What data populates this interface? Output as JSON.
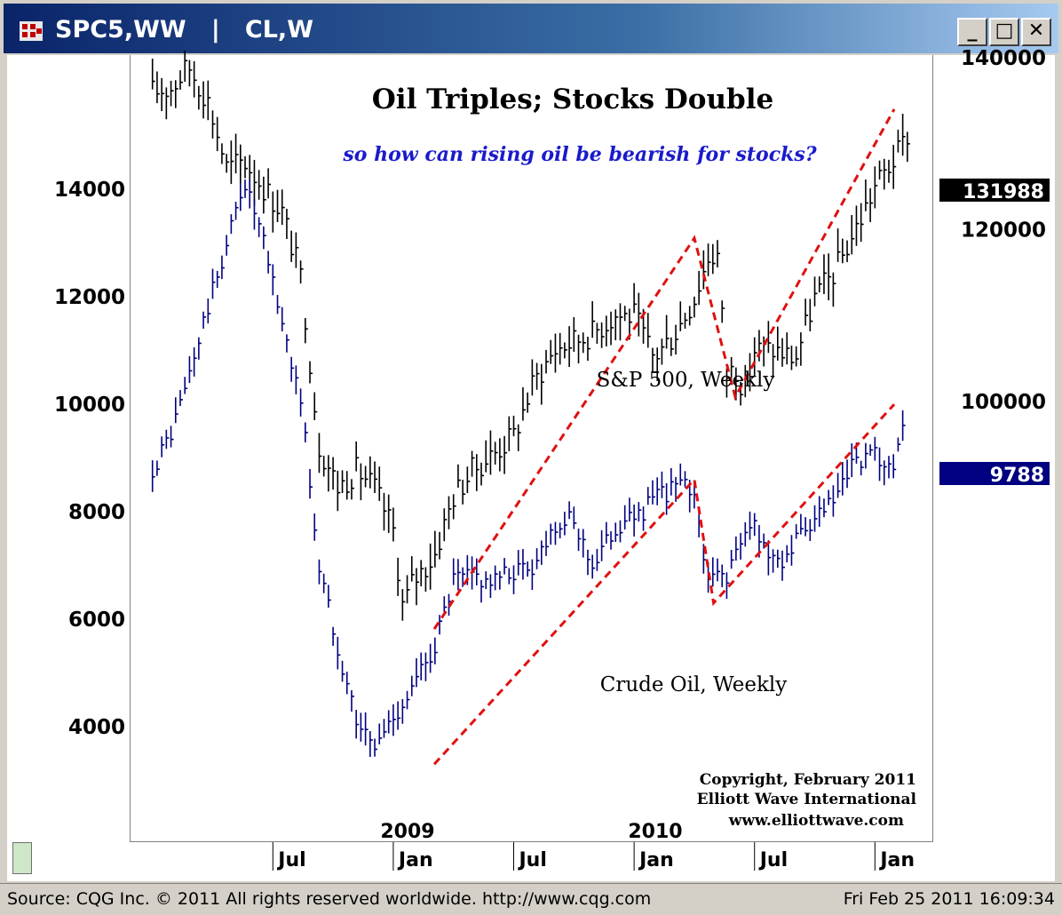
{
  "window": {
    "title": "SPC5,WW   |   CL,W",
    "buttons": {
      "minimize": "_",
      "maximize": "□",
      "close": "✕"
    }
  },
  "status_bar": {
    "source": "Source: CQG Inc. © 2011 All rights reserved worldwide. http://www.cqg.com",
    "datetime": "Fri Feb 25 2011 16:09:34"
  },
  "chart_data": {
    "type": "line",
    "title": "Oil Triples; Stocks Double",
    "subtitle": "so how can rising oil be bearish for stocks?",
    "copyright": [
      "Copyright, February 2011",
      "Elliott Wave International",
      "www.elliottwave.com"
    ],
    "x_ticks": [
      "Jul",
      "Jan",
      "Jul",
      "Jan",
      "Jul",
      "Jan"
    ],
    "year_labels": [
      "2009",
      "2010"
    ],
    "left_axis": {
      "ticks": [
        4000,
        6000,
        8000,
        10000,
        12000,
        14000
      ],
      "ylim": [
        1850,
        16500
      ]
    },
    "right_axis": {
      "ticks": [
        100000,
        120000,
        140000
      ],
      "ylim": [
        48700,
        140300
      ]
    },
    "series": [
      {
        "name": "S&P 500, Weekly",
        "axis": "right",
        "color": "#000000",
        "last_value": "131988",
        "x": [
          2008.0,
          2008.08,
          2008.15,
          2008.23,
          2008.31,
          2008.38,
          2008.46,
          2008.54,
          2008.62,
          2008.69,
          2008.77,
          2008.85,
          2008.92,
          2009.0,
          2009.04,
          2009.08,
          2009.17,
          2009.25,
          2009.33,
          2009.42,
          2009.5,
          2009.58,
          2009.67,
          2009.75,
          2009.83,
          2009.92,
          2010.0,
          2010.08,
          2010.17,
          2010.25,
          2010.31,
          2010.35,
          2010.38,
          2010.42,
          2010.46,
          2010.5,
          2010.58,
          2010.67,
          2010.75,
          2010.83,
          2010.92,
          2011.0,
          2011.1,
          2011.15
        ],
        "values": [
          136000,
          136500,
          139000,
          135000,
          127000,
          128000,
          125000,
          122000,
          114000,
          95000,
          90000,
          92000,
          90000,
          85000,
          76000,
          79000,
          82000,
          89000,
          92000,
          94000,
          96000,
          102000,
          106000,
          107000,
          108000,
          110000,
          110000,
          105000,
          108000,
          112000,
          117000,
          117000,
          103000,
          104000,
          101000,
          106000,
          106000,
          105000,
          112000,
          115000,
          120000,
          125000,
          129000,
          131988
        ],
        "trendline": [
          [
            2009.17,
            73500
          ],
          [
            2010.25,
            119000
          ],
          [
            2010.42,
            100500
          ],
          [
            2011.08,
            134000
          ]
        ]
      },
      {
        "name": "Crude Oil, Weekly",
        "axis": "left",
        "color": "#000080",
        "last_value": "9788",
        "x": [
          2008.0,
          2008.08,
          2008.15,
          2008.23,
          2008.31,
          2008.38,
          2008.46,
          2008.54,
          2008.62,
          2008.69,
          2008.77,
          2008.85,
          2008.92,
          2009.0,
          2009.08,
          2009.17,
          2009.25,
          2009.33,
          2009.42,
          2009.5,
          2009.58,
          2009.67,
          2009.75,
          2009.83,
          2009.92,
          2010.0,
          2010.08,
          2010.17,
          2010.25,
          2010.31,
          2010.35,
          2010.38,
          2010.42,
          2010.5,
          2010.58,
          2010.67,
          2010.75,
          2010.83,
          2010.92,
          2011.0,
          2011.08,
          2011.12
        ],
        "values": [
          8800,
          9500,
          10500,
          11800,
          13000,
          14200,
          13000,
          11500,
          10000,
          7000,
          5500,
          4100,
          3600,
          4200,
          4700,
          5500,
          6700,
          6800,
          6700,
          6900,
          7000,
          7800,
          7800,
          7000,
          7700,
          7900,
          8200,
          8500,
          8400,
          6600,
          6900,
          6800,
          7200,
          7800,
          7000,
          7400,
          7800,
          8200,
          8900,
          9000,
          8600,
          9788
        ],
        "trendline": [
          [
            2009.17,
            3300
          ],
          [
            2010.25,
            8600
          ],
          [
            2010.33,
            6300
          ],
          [
            2011.08,
            10000
          ]
        ]
      }
    ],
    "annotations": [
      "S&P 500, Weekly",
      "Crude Oil, Weekly"
    ],
    "grid": false,
    "legend": "none"
  }
}
